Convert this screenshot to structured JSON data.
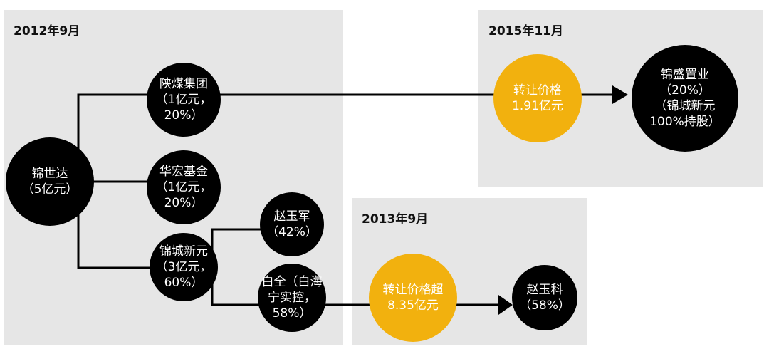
{
  "panels": [
    {
      "label": "2012年9月"
    },
    {
      "label": "2015年11月"
    },
    {
      "label": "2013年9月"
    }
  ],
  "nodes": [
    {
      "lines": [
        "锦世达",
        "（5亿元）"
      ]
    },
    {
      "lines": [
        "陕煤集团",
        "（1亿元，",
        "20%）"
      ]
    },
    {
      "lines": [
        "华宏基金",
        "（1亿元，",
        "20%）"
      ]
    },
    {
      "lines": [
        "锦城新元",
        "（3亿元，",
        "60%）"
      ]
    },
    {
      "lines": [
        "赵玉军",
        "（42%）"
      ]
    },
    {
      "lines": [
        "白全（白海",
        "宁实控，",
        "58%）"
      ]
    },
    {
      "lines": [
        "转让价格超",
        "8.35亿元"
      ]
    },
    {
      "lines": [
        "赵玉科",
        "（58%）"
      ]
    },
    {
      "lines": [
        "转让价格",
        "1.91亿元"
      ]
    },
    {
      "lines": [
        "锦盛置业",
        "（20%）",
        "（锦城新元",
        "100%持股）"
      ]
    }
  ]
}
